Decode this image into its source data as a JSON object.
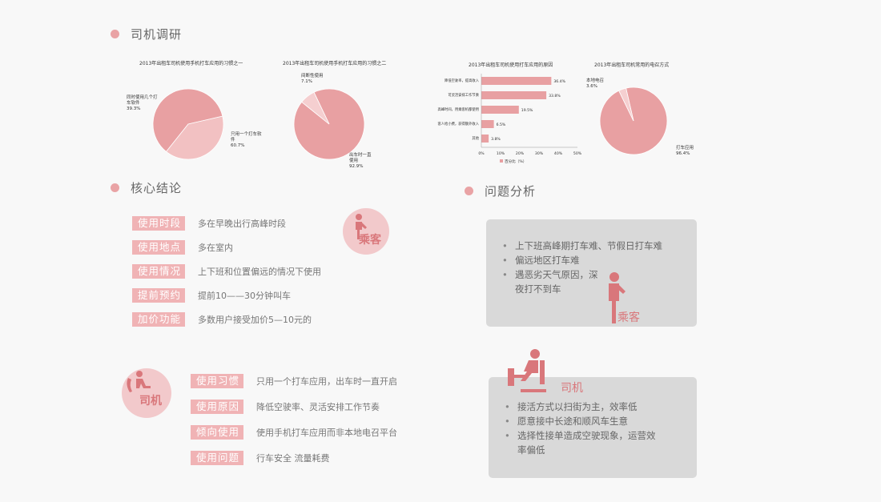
{
  "sections": {
    "driver_survey": "司机调研",
    "core_conclusion": "核心结论",
    "problem_analysis": "问题分析"
  },
  "chart_data": [
    {
      "type": "pie",
      "title": "2013年出租车司机使用手机打车应用的习惯之一",
      "slices": [
        {
          "label": "只用一个打车软件",
          "value": 60.7,
          "value_label": "60.7%",
          "color": "#e8a0a2"
        },
        {
          "label": "同时使用几个打车软件",
          "value": 39.3,
          "value_label": "39.3%",
          "color": "#f2c1c2"
        }
      ]
    },
    {
      "type": "pie",
      "title": "2013年出租车司机使用手机打车应用的习惯之二",
      "slices": [
        {
          "label": "出车时一直使用",
          "value": 92.9,
          "value_label": "92.9%",
          "color": "#e8a0a2"
        },
        {
          "label": "间断性使用",
          "value": 7.1,
          "value_label": "7.1%",
          "color": "#f5cfd0"
        }
      ]
    },
    {
      "type": "bar",
      "orientation": "horizontal",
      "title": "2013年出租车司机使用打车应用的原因",
      "categories": [
        "降低空驶率，提高收入",
        "可灵活安排工作节奏",
        "高峰时间，用乘客机都使用",
        "客人给小费，获得额外收入",
        "其他"
      ],
      "values": [
        36.4,
        33.8,
        19.5,
        6.5,
        3.8
      ],
      "value_labels": [
        "36.4%",
        "33.8%",
        "19.5%",
        "6.5%",
        "3.8%"
      ],
      "xlim": [
        0,
        50
      ],
      "xticks": [
        "0%",
        "10%",
        "20%",
        "30%",
        "40%",
        "50%"
      ],
      "legend": "百分比（%）",
      "color": "#e8a0a2"
    },
    {
      "type": "pie",
      "title": "2013年出租车司机常用的电召方式",
      "slices": [
        {
          "label": "打车应用",
          "value": 96.4,
          "value_label": "96.4%",
          "color": "#e8a0a2"
        },
        {
          "label": "本地电召",
          "value": 3.6,
          "value_label": "3.6%",
          "color": "#f5cfd0"
        }
      ]
    }
  ],
  "passenger_icon_label": "乘客",
  "driver_icon_label": "司机",
  "passenger_rows": [
    {
      "tag": "使用时段",
      "text": "多在早晚出行高峰时段"
    },
    {
      "tag": "使用地点",
      "text": "多在室内"
    },
    {
      "tag": "使用情况",
      "text": "上下班和位置偏远的情况下使用"
    },
    {
      "tag": "提前预约",
      "text": "提前10——30分钟叫车"
    },
    {
      "tag": "加价功能",
      "text": "多数用户接受加价5—10元的"
    }
  ],
  "driver_rows": [
    {
      "tag": "使用习惯",
      "text": "只用一个打车应用，出车时一直开启"
    },
    {
      "tag": "使用原因",
      "text": "降低空驶率、灵活安排工作节奏"
    },
    {
      "tag": "倾向使用",
      "text": "使用手机打车应用而非本地电召平台"
    },
    {
      "tag": "使用问题",
      "text": "行车安全  流量耗费"
    }
  ],
  "passenger_problems": {
    "label": "乘客",
    "items": [
      "上下班高峰期打车难、节假日打车难",
      "偏远地区打车难",
      "遇恶劣天气原因，深夜打不到车"
    ]
  },
  "driver_problems": {
    "label": "司机",
    "items": [
      "接活方式以扫街为主，效率低",
      "愿意接中长途和顺风车生意",
      "选择性接单造成空驶现象，运营效率偏低"
    ]
  }
}
